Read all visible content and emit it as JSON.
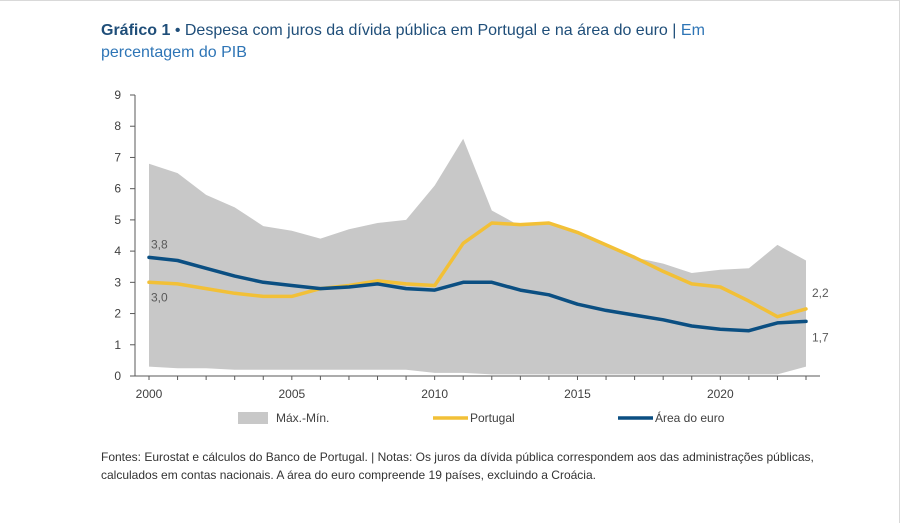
{
  "title": {
    "label": "Gráfico 1",
    "bullet": "•",
    "text": "Despesa com juros da dívida pública em Portugal e na área do euro",
    "separator": "|",
    "unit": "Em percentagem do PIB"
  },
  "chart_data": {
    "type": "area",
    "x": [
      2000,
      2001,
      2002,
      2003,
      2004,
      2005,
      2006,
      2007,
      2008,
      2009,
      2010,
      2011,
      2012,
      2013,
      2014,
      2015,
      2016,
      2017,
      2018,
      2019,
      2020,
      2021,
      2022,
      2023
    ],
    "series": [
      {
        "name": "Máx.-Mín.",
        "kind": "band",
        "max": [
          6.8,
          6.5,
          5.8,
          5.4,
          4.8,
          4.65,
          4.4,
          4.7,
          4.9,
          5.0,
          6.1,
          7.6,
          5.3,
          4.8,
          4.9,
          4.6,
          4.2,
          3.8,
          3.6,
          3.3,
          3.4,
          3.45,
          4.2,
          3.7
        ],
        "min": [
          0.3,
          0.25,
          0.25,
          0.2,
          0.2,
          0.2,
          0.2,
          0.2,
          0.2,
          0.2,
          0.1,
          0.1,
          0.05,
          0.05,
          0.05,
          0.05,
          0.05,
          0.05,
          0.05,
          0.05,
          0.05,
          0.05,
          0.05,
          0.3
        ]
      },
      {
        "name": "Portugal",
        "kind": "line",
        "values": [
          3.0,
          2.95,
          2.8,
          2.65,
          2.55,
          2.55,
          2.8,
          2.9,
          3.05,
          2.95,
          2.9,
          4.25,
          4.9,
          4.85,
          4.9,
          4.6,
          4.2,
          3.8,
          3.35,
          2.95,
          2.85,
          2.4,
          1.9,
          2.15
        ]
      },
      {
        "name": "Área do euro",
        "kind": "line",
        "values": [
          3.8,
          3.7,
          3.45,
          3.2,
          3.0,
          2.9,
          2.8,
          2.85,
          2.95,
          2.8,
          2.75,
          3.0,
          3.0,
          2.75,
          2.6,
          2.3,
          2.1,
          1.95,
          1.8,
          1.6,
          1.5,
          1.45,
          1.7,
          1.75
        ]
      }
    ],
    "colors": {
      "band": "#c8c8c8",
      "portugal": "#f2c037",
      "euro": "#0b4f82",
      "axis": "#595959",
      "text": "#595959"
    },
    "xlim": [
      2000,
      2023
    ],
    "ylim": [
      0,
      9
    ],
    "yticks": [
      "0",
      "1",
      "2",
      "3",
      "4",
      "5",
      "6",
      "7",
      "8",
      "9"
    ],
    "xticks": [
      {
        "value": 2000,
        "label": "2000"
      },
      {
        "value": 2005,
        "label": "2005"
      },
      {
        "value": 2010,
        "label": "2010"
      },
      {
        "value": 2015,
        "label": "2015"
      },
      {
        "value": 2020,
        "label": "2020"
      }
    ],
    "annotations": [
      {
        "text": "3,8",
        "x": 2000,
        "y": 3.8,
        "anchor": "above"
      },
      {
        "text": "3,0",
        "x": 2000,
        "y": 3.0,
        "anchor": "below"
      },
      {
        "text": "2,2",
        "x": 2023,
        "y": 2.15,
        "anchor": "above-right"
      },
      {
        "text": "1,7",
        "x": 2023,
        "y": 1.75,
        "anchor": "below-right"
      }
    ],
    "legend": [
      "Máx.-Mín.",
      "Portugal",
      "Área do euro"
    ],
    "legend_position": "bottom"
  },
  "footer": {
    "text": "Fontes: Eurostat e cálculos do Banco de Portugal.  |  Notas: Os juros da dívida pública correspondem aos das administrações públicas, calculados em contas nacionais. A área do euro compreende 19 países, excluindo a Croácia."
  }
}
